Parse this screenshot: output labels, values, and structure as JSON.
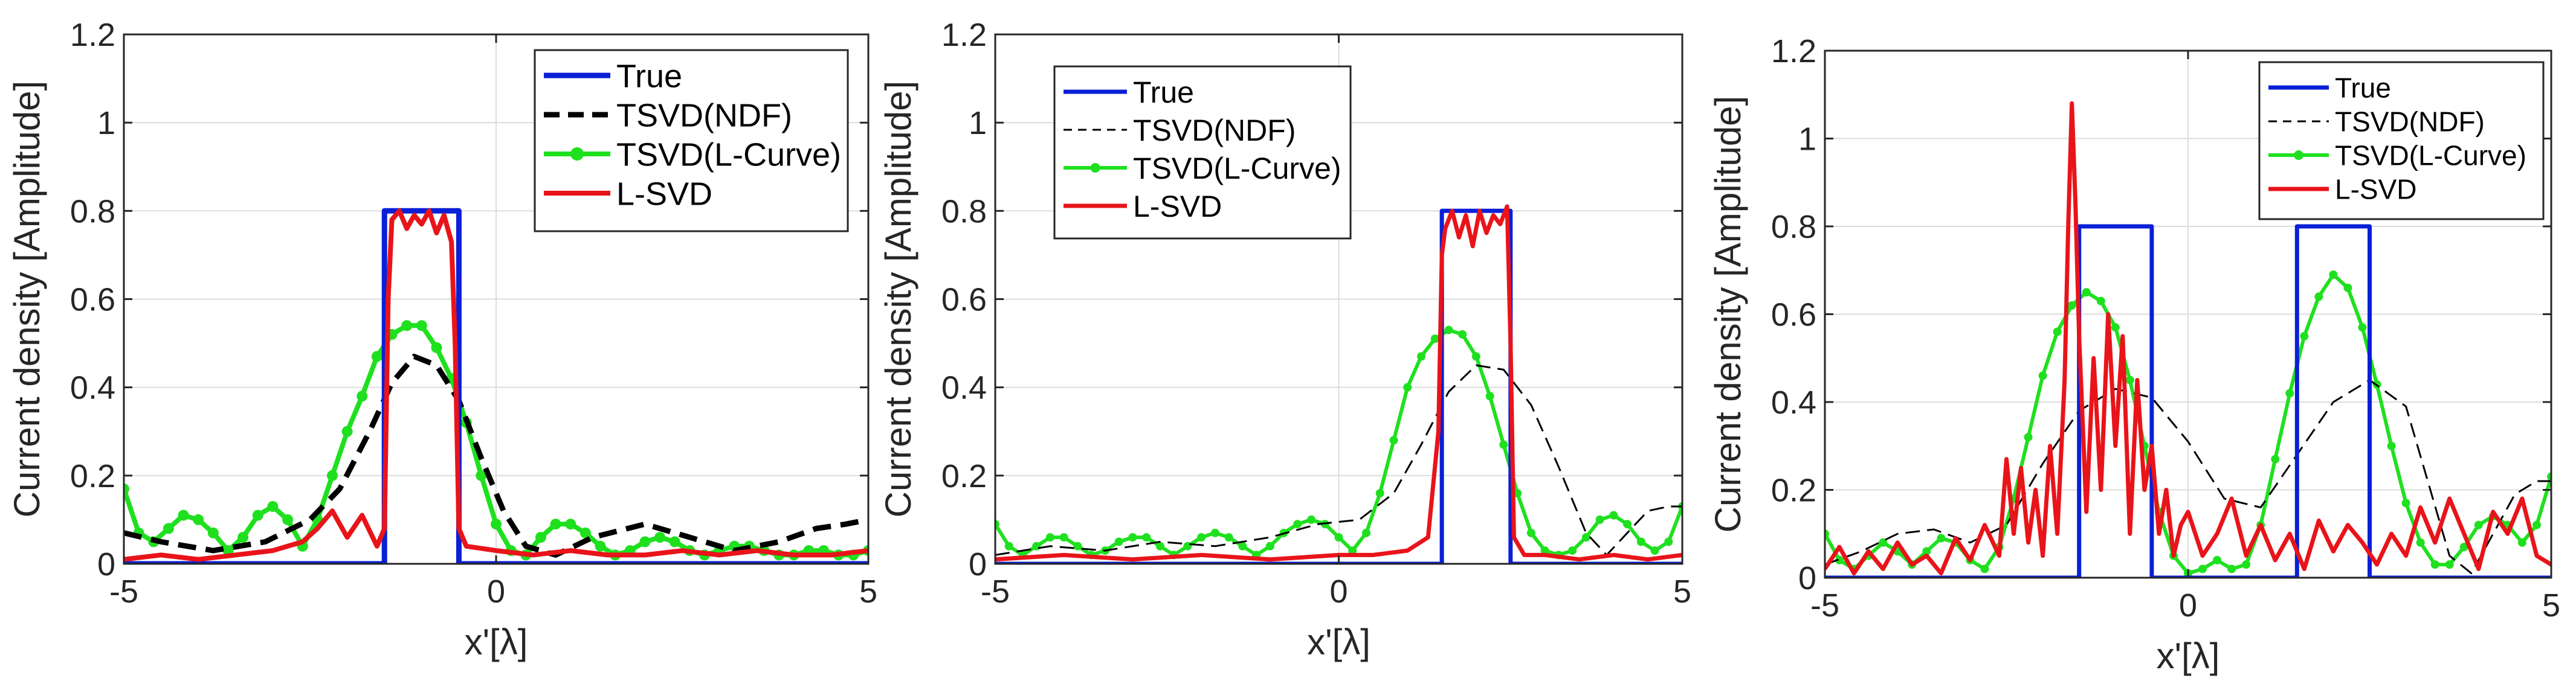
{
  "colors": {
    "true": "#0a1fd6",
    "ndf": "#000000",
    "lcurve": "#1fe01f",
    "lsvd": "#e8141a",
    "grid": "#dcdcdc",
    "axis": "#262626"
  },
  "chart_data": [
    {
      "type": "line",
      "title": "",
      "xlabel": "x'[λ]",
      "ylabel": "Current density [Amplitude]",
      "xlim": [
        -5,
        5
      ],
      "ylim": [
        0,
        1.2
      ],
      "x_ticks": [
        -5,
        0,
        5
      ],
      "x_tick_labels": [
        "-5",
        "0",
        "5"
      ],
      "y_ticks": [
        0,
        0.2,
        0.4,
        0.6,
        0.8,
        1,
        1.2
      ],
      "y_tick_labels": [
        "0",
        "0.2",
        "0.4",
        "0.6",
        "0.8",
        "1",
        "1.2"
      ],
      "grid": true,
      "legend": [
        "True",
        "TSVD(NDF)",
        "TSVD(L-Curve)",
        "L-SVD"
      ],
      "legend_location": "top-right",
      "series": [
        {
          "name": "True",
          "style": "true",
          "x": [
            -5,
            -1.5,
            -1.5,
            -0.5,
            -0.5,
            5
          ],
          "y": [
            0,
            0,
            0.8,
            0.8,
            0,
            0
          ]
        },
        {
          "name": "TSVD(NDF)",
          "style": "ndf",
          "x": [
            -5,
            -4.5,
            -3.8,
            -3.1,
            -2.5,
            -2.1,
            -1.7,
            -1.4,
            -1.1,
            -0.8,
            -0.5,
            -0.2,
            0.1,
            0.4,
            0.8,
            1.3,
            2.0,
            2.6,
            3.2,
            3.8,
            4.3,
            4.7,
            5
          ],
          "y": [
            0.07,
            0.05,
            0.03,
            0.05,
            0.1,
            0.17,
            0.3,
            0.41,
            0.47,
            0.45,
            0.37,
            0.24,
            0.12,
            0.04,
            0.02,
            0.06,
            0.09,
            0.06,
            0.03,
            0.05,
            0.08,
            0.09,
            0.1
          ]
        },
        {
          "name": "TSVD(L-Curve)",
          "style": "lcurve",
          "x": [
            -5,
            -4.8,
            -4.6,
            -4.4,
            -4.2,
            -4.0,
            -3.8,
            -3.6,
            -3.4,
            -3.2,
            -3.0,
            -2.8,
            -2.6,
            -2.4,
            -2.2,
            -2.0,
            -1.8,
            -1.6,
            -1.4,
            -1.2,
            -1.0,
            -0.8,
            -0.6,
            -0.4,
            -0.2,
            0.0,
            0.2,
            0.4,
            0.6,
            0.8,
            1.0,
            1.2,
            1.4,
            1.6,
            1.8,
            2.0,
            2.2,
            2.4,
            2.6,
            2.8,
            3.0,
            3.2,
            3.4,
            3.6,
            3.8,
            4.0,
            4.2,
            4.4,
            4.6,
            4.8,
            5
          ],
          "y": [
            0.17,
            0.07,
            0.05,
            0.08,
            0.11,
            0.1,
            0.07,
            0.03,
            0.06,
            0.11,
            0.13,
            0.1,
            0.04,
            0.1,
            0.2,
            0.3,
            0.38,
            0.47,
            0.52,
            0.54,
            0.54,
            0.49,
            0.42,
            0.32,
            0.2,
            0.09,
            0.03,
            0.02,
            0.06,
            0.09,
            0.09,
            0.07,
            0.04,
            0.02,
            0.03,
            0.05,
            0.06,
            0.05,
            0.03,
            0.02,
            0.03,
            0.04,
            0.04,
            0.03,
            0.02,
            0.02,
            0.03,
            0.03,
            0.02,
            0.02,
            0.03
          ]
        },
        {
          "name": "L-SVD",
          "style": "lsvd",
          "x": [
            -5,
            -4.5,
            -4.0,
            -3.5,
            -3.0,
            -2.6,
            -2.4,
            -2.2,
            -2.0,
            -1.8,
            -1.6,
            -1.5,
            -1.45,
            -1.4,
            -1.3,
            -1.2,
            -1.1,
            -1.0,
            -0.9,
            -0.8,
            -0.7,
            -0.6,
            -0.55,
            -0.5,
            -0.4,
            0.0,
            0.5,
            1.0,
            1.5,
            2.0,
            2.5,
            3.0,
            3.5,
            4.0,
            4.5,
            5
          ],
          "y": [
            0.01,
            0.02,
            0.01,
            0.02,
            0.03,
            0.05,
            0.08,
            0.12,
            0.06,
            0.11,
            0.04,
            0.08,
            0.6,
            0.78,
            0.8,
            0.76,
            0.79,
            0.77,
            0.8,
            0.75,
            0.79,
            0.73,
            0.5,
            0.08,
            0.04,
            0.03,
            0.02,
            0.03,
            0.02,
            0.02,
            0.03,
            0.02,
            0.03,
            0.02,
            0.02,
            0.03
          ]
        }
      ]
    },
    {
      "type": "line",
      "title": "",
      "xlabel": "x'[λ]",
      "ylabel": "Current density [Amplitude]",
      "xlim": [
        -5,
        5
      ],
      "ylim": [
        0,
        1.2
      ],
      "x_ticks": [
        -5,
        0,
        5
      ],
      "x_tick_labels": [
        "-5",
        "0",
        "5"
      ],
      "y_ticks": [
        0,
        0.2,
        0.4,
        0.6,
        0.8,
        1,
        1.2
      ],
      "y_tick_labels": [
        "0",
        "0.2",
        "0.4",
        "0.6",
        "0.8",
        "1",
        "1.2"
      ],
      "grid": true,
      "legend": [
        "True",
        "TSVD(NDF)",
        "TSVD(L-Curve)",
        "L-SVD"
      ],
      "legend_location": "top-left",
      "series": [
        {
          "name": "True",
          "style": "true",
          "x": [
            -5,
            1.5,
            1.5,
            2.5,
            2.5,
            5
          ],
          "y": [
            0,
            0,
            0.8,
            0.8,
            0,
            0
          ]
        },
        {
          "name": "TSVD(NDF)",
          "style": "ndf",
          "x": [
            -5,
            -4.2,
            -3.4,
            -2.6,
            -1.8,
            -1.0,
            -0.3,
            0.3,
            0.8,
            1.2,
            1.6,
            2.0,
            2.4,
            2.8,
            3.2,
            3.6,
            3.9,
            4.2,
            4.5,
            4.8,
            5
          ],
          "y": [
            0.02,
            0.04,
            0.03,
            0.05,
            0.04,
            0.06,
            0.09,
            0.1,
            0.16,
            0.27,
            0.39,
            0.45,
            0.44,
            0.36,
            0.22,
            0.07,
            0.02,
            0.07,
            0.12,
            0.13,
            0.13
          ]
        },
        {
          "name": "TSVD(L-Curve)",
          "style": "lcurve",
          "x": [
            -5,
            -4.8,
            -4.6,
            -4.4,
            -4.2,
            -4.0,
            -3.8,
            -3.6,
            -3.4,
            -3.2,
            -3.0,
            -2.8,
            -2.6,
            -2.4,
            -2.2,
            -2.0,
            -1.8,
            -1.6,
            -1.4,
            -1.2,
            -1.0,
            -0.8,
            -0.6,
            -0.4,
            -0.2,
            0.0,
            0.2,
            0.4,
            0.6,
            0.8,
            1.0,
            1.2,
            1.4,
            1.6,
            1.8,
            2.0,
            2.2,
            2.4,
            2.6,
            2.8,
            3.0,
            3.2,
            3.4,
            3.6,
            3.8,
            4.0,
            4.2,
            4.4,
            4.6,
            4.8,
            5
          ],
          "y": [
            0.09,
            0.04,
            0.02,
            0.04,
            0.06,
            0.06,
            0.04,
            0.02,
            0.03,
            0.05,
            0.06,
            0.06,
            0.04,
            0.02,
            0.04,
            0.06,
            0.07,
            0.06,
            0.04,
            0.02,
            0.04,
            0.07,
            0.09,
            0.1,
            0.09,
            0.06,
            0.03,
            0.07,
            0.16,
            0.28,
            0.4,
            0.47,
            0.51,
            0.53,
            0.52,
            0.47,
            0.38,
            0.27,
            0.16,
            0.07,
            0.03,
            0.02,
            0.03,
            0.06,
            0.1,
            0.11,
            0.09,
            0.05,
            0.03,
            0.05,
            0.13
          ]
        },
        {
          "name": "L-SVD",
          "style": "lsvd",
          "x": [
            -5,
            -4.0,
            -3.0,
            -2.0,
            -1.0,
            0.0,
            0.5,
            1.0,
            1.3,
            1.45,
            1.5,
            1.55,
            1.65,
            1.75,
            1.85,
            1.95,
            2.05,
            2.15,
            2.25,
            2.35,
            2.45,
            2.5,
            2.55,
            2.7,
            3.0,
            3.5,
            4.0,
            4.5,
            5
          ],
          "y": [
            0.01,
            0.02,
            0.01,
            0.02,
            0.01,
            0.02,
            0.02,
            0.03,
            0.06,
            0.3,
            0.7,
            0.76,
            0.8,
            0.74,
            0.79,
            0.72,
            0.8,
            0.75,
            0.79,
            0.77,
            0.81,
            0.5,
            0.06,
            0.02,
            0.02,
            0.01,
            0.02,
            0.01,
            0.02
          ]
        }
      ]
    },
    {
      "type": "line",
      "title": "",
      "xlabel": "x'[λ]",
      "ylabel": "Current density [Amplitude]",
      "xlim": [
        -5,
        5
      ],
      "ylim": [
        0,
        1.2
      ],
      "x_ticks": [
        -5,
        0,
        5
      ],
      "x_tick_labels": [
        "-5",
        "0",
        "5"
      ],
      "y_ticks": [
        0,
        0.2,
        0.4,
        0.6,
        0.8,
        1,
        1.2
      ],
      "y_tick_labels": [
        "0",
        "0.2",
        "0.4",
        "0.6",
        "0.8",
        "1",
        "1.2"
      ],
      "grid": true,
      "legend": [
        "True",
        "TSVD(NDF)",
        "TSVD(L-Curve)",
        "L-SVD"
      ],
      "legend_location": "top-right",
      "series": [
        {
          "name": "True",
          "style": "true",
          "x": [
            -5,
            -1.5,
            -1.5,
            -0.5,
            -0.5,
            1.5,
            1.5,
            2.5,
            2.5,
            5
          ],
          "y": [
            0,
            0,
            0.8,
            0.8,
            0,
            0,
            0.8,
            0.8,
            0,
            0
          ]
        },
        {
          "name": "TSVD(NDF)",
          "style": "ndf",
          "x": [
            -5,
            -4.5,
            -4.0,
            -3.5,
            -3.0,
            -2.5,
            -2.0,
            -1.5,
            -1.0,
            -0.5,
            0.0,
            0.5,
            1.0,
            1.5,
            2.0,
            2.5,
            3.0,
            3.3,
            3.6,
            3.9,
            4.2,
            4.5,
            4.8,
            5
          ],
          "y": [
            0.03,
            0.06,
            0.1,
            0.11,
            0.08,
            0.12,
            0.26,
            0.38,
            0.43,
            0.41,
            0.31,
            0.18,
            0.16,
            0.28,
            0.4,
            0.45,
            0.39,
            0.22,
            0.05,
            0.01,
            0.1,
            0.19,
            0.22,
            0.22
          ]
        },
        {
          "name": "TSVD(L-Curve)",
          "style": "lcurve",
          "x": [
            -5,
            -4.8,
            -4.6,
            -4.4,
            -4.2,
            -4.0,
            -3.8,
            -3.6,
            -3.4,
            -3.2,
            -3.0,
            -2.8,
            -2.6,
            -2.4,
            -2.2,
            -2.0,
            -1.8,
            -1.6,
            -1.4,
            -1.2,
            -1.0,
            -0.8,
            -0.6,
            -0.4,
            -0.2,
            0.0,
            0.2,
            0.4,
            0.6,
            0.8,
            1.0,
            1.2,
            1.4,
            1.6,
            1.8,
            2.0,
            2.2,
            2.4,
            2.6,
            2.8,
            3.0,
            3.2,
            3.4,
            3.6,
            3.8,
            4.0,
            4.2,
            4.4,
            4.6,
            4.8,
            5
          ],
          "y": [
            0.1,
            0.04,
            0.02,
            0.05,
            0.08,
            0.06,
            0.03,
            0.06,
            0.09,
            0.08,
            0.04,
            0.02,
            0.07,
            0.18,
            0.32,
            0.46,
            0.56,
            0.62,
            0.65,
            0.63,
            0.57,
            0.45,
            0.3,
            0.15,
            0.05,
            0.01,
            0.02,
            0.04,
            0.02,
            0.03,
            0.12,
            0.27,
            0.42,
            0.55,
            0.64,
            0.69,
            0.66,
            0.57,
            0.44,
            0.3,
            0.17,
            0.08,
            0.03,
            0.03,
            0.07,
            0.12,
            0.14,
            0.12,
            0.08,
            0.12,
            0.23
          ]
        },
        {
          "name": "L-SVD",
          "style": "lsvd",
          "x": [
            -5,
            -4.8,
            -4.6,
            -4.4,
            -4.2,
            -4.0,
            -3.8,
            -3.6,
            -3.4,
            -3.2,
            -3.0,
            -2.8,
            -2.6,
            -2.5,
            -2.4,
            -2.3,
            -2.2,
            -2.1,
            -2.0,
            -1.9,
            -1.8,
            -1.7,
            -1.65,
            -1.6,
            -1.55,
            -1.5,
            -1.4,
            -1.3,
            -1.2,
            -1.1,
            -1.0,
            -0.9,
            -0.8,
            -0.7,
            -0.6,
            -0.5,
            -0.4,
            -0.3,
            -0.2,
            -0.1,
            0.0,
            0.2,
            0.4,
            0.6,
            0.8,
            1.0,
            1.2,
            1.4,
            1.6,
            1.8,
            2.0,
            2.2,
            2.4,
            2.6,
            2.8,
            3.0,
            3.2,
            3.4,
            3.6,
            3.8,
            4.0,
            4.2,
            4.4,
            4.6,
            4.8,
            5
          ],
          "y": [
            0.02,
            0.07,
            0.01,
            0.06,
            0.02,
            0.08,
            0.03,
            0.05,
            0.01,
            0.09,
            0.04,
            0.12,
            0.05,
            0.27,
            0.1,
            0.25,
            0.08,
            0.2,
            0.05,
            0.3,
            0.1,
            0.45,
            0.8,
            1.08,
            0.85,
            0.55,
            0.15,
            0.5,
            0.2,
            0.6,
            0.3,
            0.55,
            0.1,
            0.45,
            0.2,
            0.3,
            0.1,
            0.2,
            0.05,
            0.12,
            0.15,
            0.05,
            0.1,
            0.18,
            0.05,
            0.12,
            0.04,
            0.1,
            0.02,
            0.13,
            0.06,
            0.12,
            0.08,
            0.03,
            0.1,
            0.05,
            0.16,
            0.08,
            0.18,
            0.1,
            0.02,
            0.15,
            0.1,
            0.18,
            0.05,
            0.03
          ]
        }
      ]
    }
  ]
}
